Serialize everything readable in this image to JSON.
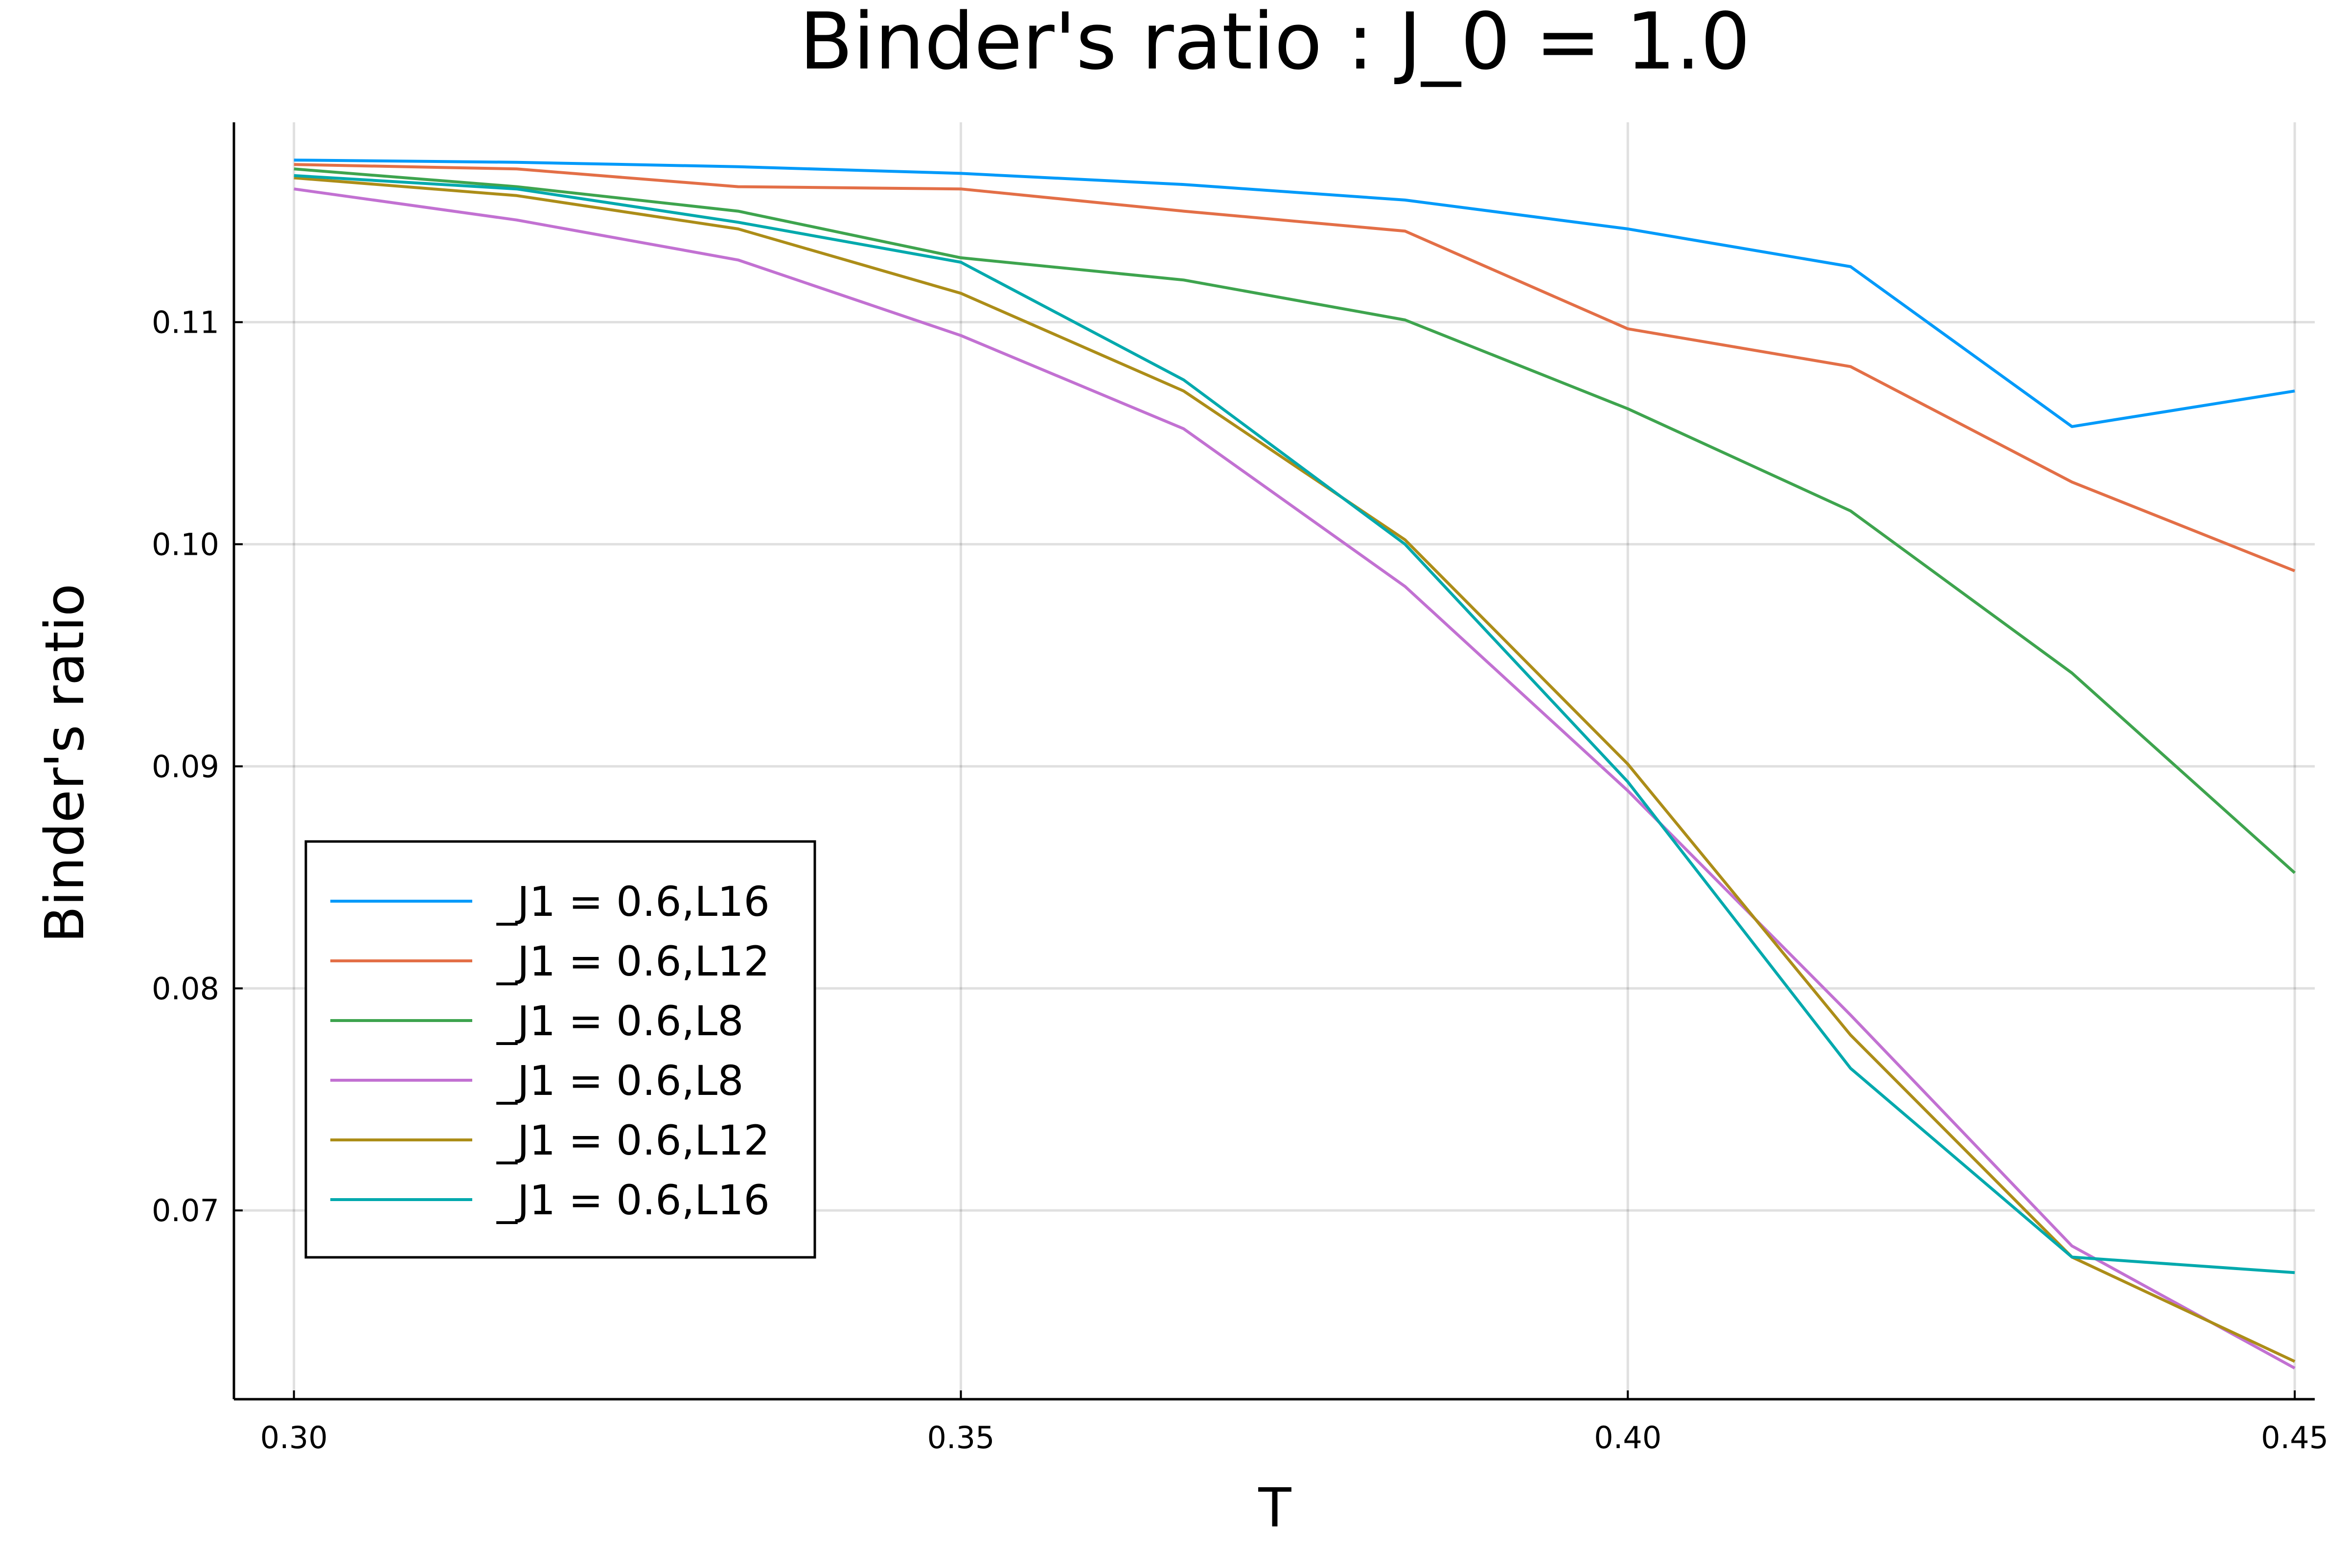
{
  "chart_data": {
    "type": "line",
    "title": "Binder's ratio : J_0 = 1.0",
    "xlabel": "T",
    "ylabel": "Binder's ratio",
    "xlim": [
      0.2955,
      0.4515
    ],
    "ylim": [
      0.0615,
      0.119
    ],
    "xticks": [
      0.3,
      0.35,
      0.4,
      0.45
    ],
    "xtick_labels": [
      "0.30",
      "0.35",
      "0.40",
      "0.45"
    ],
    "yticks": [
      0.07,
      0.08,
      0.09,
      0.1,
      0.11
    ],
    "ytick_labels": [
      "0.07",
      "0.08",
      "0.09",
      "0.10",
      "0.11"
    ],
    "grid": true,
    "legend_position": "bottom-left",
    "x": [
      0.3,
      0.3167,
      0.3333,
      0.35,
      0.3667,
      0.3833,
      0.4,
      0.4167,
      0.4333,
      0.45
    ],
    "series": [
      {
        "name": "_J1 = 0.6,L16",
        "color": "#009AFA",
        "values": [
          0.1173,
          0.1172,
          0.117,
          0.1167,
          0.1162,
          0.1155,
          0.1142,
          0.1125,
          0.1053,
          0.1069
        ]
      },
      {
        "name": "_J1 = 0.6,L12",
        "color": "#E36F47",
        "values": [
          0.1171,
          0.1169,
          0.1161,
          0.116,
          0.115,
          0.1141,
          0.1097,
          0.108,
          0.1028,
          0.0988
        ]
      },
      {
        "name": "_J1 = 0.6,L8",
        "color": "#3EA44E",
        "values": [
          0.1169,
          0.1161,
          0.115,
          0.1129,
          0.1119,
          0.1101,
          0.1061,
          0.1015,
          0.0942,
          0.0852
        ]
      },
      {
        "name": "_J1 = 0.6,L8",
        "color": "#C271D2",
        "values": [
          0.116,
          0.1146,
          0.1128,
          0.1094,
          0.1052,
          0.0981,
          0.0889,
          0.0788,
          0.0684,
          0.0629
        ]
      },
      {
        "name": "_J1 = 0.6,L12",
        "color": "#AC8D18",
        "values": [
          0.1165,
          0.1157,
          0.1142,
          0.1113,
          0.1069,
          0.1002,
          0.0901,
          0.0779,
          0.0679,
          0.0632
        ]
      },
      {
        "name": "_J1 = 0.6,L16",
        "color": "#00A9AD",
        "values": [
          0.1166,
          0.116,
          0.1145,
          0.1127,
          0.1074,
          0.1,
          0.0893,
          0.0764,
          0.0679,
          0.0672
        ]
      }
    ]
  }
}
